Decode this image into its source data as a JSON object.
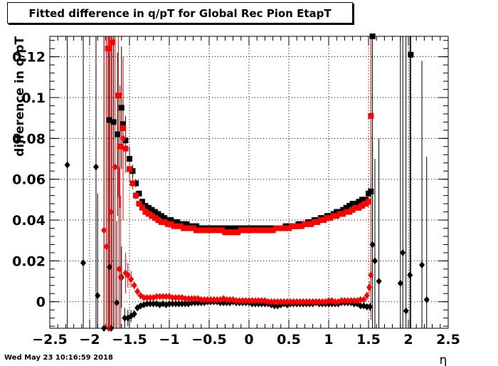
{
  "datestamp": "Wed May 23 10:16:59 2018",
  "chart_data": {
    "type": "scatter",
    "title": "Fitted difference in q/pT for Global Rec Pion EtapT",
    "xlabel": "η",
    "ylabel": "difference in q/pT",
    "xlim": [
      -2.5,
      2.5
    ],
    "ylim": [
      -0.013,
      0.13
    ],
    "grid": true,
    "xticks": [
      -2.5,
      -2,
      -1.5,
      -1,
      -0.5,
      0,
      0.5,
      1,
      1.5,
      2,
      2.5
    ],
    "xtick_labels": [
      "−2.5",
      "−2",
      "−1.5",
      "−1",
      "−0.5",
      "0",
      "0.5",
      "1",
      "1.5",
      "2",
      "2.5"
    ],
    "yticks": [
      0,
      0.02,
      0.04,
      0.06,
      0.08,
      0.1,
      0.12
    ],
    "ytick_labels": [
      "0",
      "0.02",
      "0.04",
      "0.06",
      "0.08",
      "0.1",
      "0.12"
    ],
    "colors": {
      "series1": "#000000",
      "series2": "#ff0000",
      "series3": "#000000",
      "series4": "#ff0000"
    },
    "series": [
      {
        "marker": "square",
        "color": "#000000",
        "x": [
          -1.75,
          -1.7,
          -1.65,
          -1.6,
          -1.58,
          -1.55,
          -1.5,
          -1.46,
          -1.42,
          -1.38,
          -1.34,
          -1.3,
          -1.26,
          -1.22,
          -1.18,
          -1.14,
          -1.1,
          -1.06,
          -1.02,
          -0.98,
          -0.94,
          -0.9,
          -0.86,
          -0.82,
          -0.78,
          -0.74,
          -0.7,
          -0.66,
          -0.62,
          -0.58,
          -0.54,
          -0.5,
          -0.46,
          -0.42,
          -0.38,
          -0.34,
          -0.3,
          -0.26,
          -0.22,
          -0.18,
          -0.14,
          -0.1,
          -0.06,
          -0.02,
          0.02,
          0.06,
          0.1,
          0.14,
          0.18,
          0.22,
          0.26,
          0.3,
          0.34,
          0.38,
          0.42,
          0.46,
          0.5,
          0.54,
          0.58,
          0.62,
          0.66,
          0.7,
          0.74,
          0.78,
          0.82,
          0.86,
          0.9,
          0.94,
          0.98,
          1.02,
          1.06,
          1.1,
          1.14,
          1.18,
          1.22,
          1.26,
          1.3,
          1.34,
          1.38,
          1.42,
          1.46,
          1.5,
          1.53,
          1.55,
          2.03
        ],
        "y": [
          0.089,
          0.088,
          0.082,
          0.095,
          0.087,
          0.079,
          0.07,
          0.064,
          0.058,
          0.053,
          0.049,
          0.047,
          0.046,
          0.045,
          0.044,
          0.043,
          0.042,
          0.041,
          0.04,
          0.04,
          0.039,
          0.039,
          0.038,
          0.038,
          0.038,
          0.037,
          0.037,
          0.037,
          0.036,
          0.036,
          0.036,
          0.036,
          0.036,
          0.036,
          0.036,
          0.036,
          0.036,
          0.036,
          0.036,
          0.036,
          0.036,
          0.036,
          0.036,
          0.036,
          0.036,
          0.036,
          0.036,
          0.036,
          0.036,
          0.036,
          0.036,
          0.036,
          0.036,
          0.036,
          0.036,
          0.037,
          0.037,
          0.037,
          0.037,
          0.038,
          0.038,
          0.038,
          0.039,
          0.039,
          0.04,
          0.04,
          0.041,
          0.041,
          0.042,
          0.042,
          0.043,
          0.044,
          0.044,
          0.045,
          0.046,
          0.047,
          0.048,
          0.048,
          0.049,
          0.05,
          0.05,
          0.053,
          0.054,
          0.13,
          0.121
        ],
        "err": [
          0.12,
          0.1,
          0.04,
          0.03,
          0.02,
          0.012,
          0.006,
          0.003,
          0.002,
          0.001,
          0.001,
          0.001,
          0.001,
          0.001,
          0.001,
          0.001,
          0.001,
          0.001,
          0.001,
          0.001,
          0.001,
          0.001,
          0.001,
          0.001,
          0.001,
          0.001,
          0.001,
          0.001,
          0.001,
          0.001,
          0.001,
          0.001,
          0.001,
          0.001,
          0.001,
          0.001,
          0.001,
          0.001,
          0.001,
          0.001,
          0.001,
          0.001,
          0.001,
          0.001,
          0.001,
          0.001,
          0.001,
          0.001,
          0.001,
          0.001,
          0.001,
          0.001,
          0.001,
          0.001,
          0.001,
          0.001,
          0.001,
          0.001,
          0.001,
          0.001,
          0.001,
          0.001,
          0.001,
          0.001,
          0.001,
          0.001,
          0.001,
          0.001,
          0.001,
          0.001,
          0.001,
          0.001,
          0.001,
          0.001,
          0.001,
          0.001,
          0.001,
          0.001,
          0.001,
          0.001,
          0.001,
          0.003,
          0.004,
          0.1,
          0.15
        ]
      },
      {
        "marker": "square",
        "color": "#ff0000",
        "x": [
          -1.77,
          -1.72,
          -1.64,
          -1.62,
          -1.58,
          -1.55,
          -1.5,
          -1.46,
          -1.42,
          -1.38,
          -1.34,
          -1.3,
          -1.26,
          -1.22,
          -1.18,
          -1.14,
          -1.1,
          -1.06,
          -1.02,
          -0.98,
          -0.94,
          -0.9,
          -0.86,
          -0.82,
          -0.78,
          -0.74,
          -0.7,
          -0.66,
          -0.62,
          -0.58,
          -0.54,
          -0.5,
          -0.46,
          -0.42,
          -0.38,
          -0.34,
          -0.3,
          -0.26,
          -0.22,
          -0.18,
          -0.14,
          -0.1,
          -0.06,
          -0.02,
          0.02,
          0.06,
          0.1,
          0.14,
          0.18,
          0.22,
          0.26,
          0.3,
          0.34,
          0.38,
          0.42,
          0.46,
          0.5,
          0.54,
          0.58,
          0.62,
          0.66,
          0.7,
          0.74,
          0.78,
          0.82,
          0.86,
          0.9,
          0.94,
          0.98,
          1.02,
          1.06,
          1.1,
          1.14,
          1.18,
          1.22,
          1.26,
          1.3,
          1.34,
          1.38,
          1.42,
          1.46,
          1.5,
          1.53
        ],
        "y": [
          0.124,
          0.127,
          0.101,
          0.076,
          0.085,
          0.075,
          0.065,
          0.058,
          0.052,
          0.048,
          0.046,
          0.044,
          0.043,
          0.042,
          0.041,
          0.04,
          0.039,
          0.039,
          0.038,
          0.038,
          0.037,
          0.037,
          0.037,
          0.036,
          0.036,
          0.036,
          0.036,
          0.035,
          0.035,
          0.035,
          0.035,
          0.035,
          0.035,
          0.035,
          0.035,
          0.035,
          0.034,
          0.034,
          0.034,
          0.034,
          0.034,
          0.035,
          0.035,
          0.035,
          0.035,
          0.035,
          0.035,
          0.035,
          0.035,
          0.035,
          0.035,
          0.035,
          0.036,
          0.036,
          0.036,
          0.036,
          0.036,
          0.037,
          0.037,
          0.037,
          0.037,
          0.038,
          0.038,
          0.038,
          0.039,
          0.039,
          0.04,
          0.04,
          0.041,
          0.041,
          0.042,
          0.042,
          0.043,
          0.043,
          0.044,
          0.044,
          0.045,
          0.046,
          0.046,
          0.047,
          0.048,
          0.049,
          0.091
        ],
        "err": [
          0.15,
          0.14,
          0.05,
          0.03,
          0.02,
          0.012,
          0.006,
          0.003,
          0.002,
          0.001,
          0.001,
          0.001,
          0.001,
          0.001,
          0.001,
          0.001,
          0.001,
          0.001,
          0.001,
          0.001,
          0.001,
          0.001,
          0.001,
          0.001,
          0.001,
          0.001,
          0.001,
          0.001,
          0.001,
          0.001,
          0.001,
          0.001,
          0.001,
          0.001,
          0.001,
          0.001,
          0.001,
          0.001,
          0.001,
          0.001,
          0.001,
          0.001,
          0.001,
          0.001,
          0.001,
          0.001,
          0.001,
          0.001,
          0.001,
          0.001,
          0.001,
          0.001,
          0.001,
          0.001,
          0.001,
          0.001,
          0.001,
          0.001,
          0.001,
          0.001,
          0.001,
          0.001,
          0.001,
          0.001,
          0.001,
          0.001,
          0.001,
          0.001,
          0.001,
          0.001,
          0.001,
          0.001,
          0.001,
          0.001,
          0.001,
          0.001,
          0.001,
          0.001,
          0.001,
          0.001,
          0.001,
          0.003,
          0.1
        ]
      },
      {
        "marker": "diamond",
        "color": "#000000",
        "x": [
          -2.28,
          -2.08,
          -1.92,
          -1.9,
          -1.82,
          -1.75,
          -1.73,
          -1.66,
          -1.6,
          -1.56,
          -1.52,
          -1.48,
          -1.44,
          -1.4,
          -1.36,
          -1.32,
          -1.28,
          -1.24,
          -1.2,
          -1.16,
          -1.12,
          -1.08,
          -1.04,
          -1.0,
          -0.96,
          -0.92,
          -0.88,
          -0.84,
          -0.8,
          -0.76,
          -0.72,
          -0.68,
          -0.64,
          -0.6,
          -0.56,
          -0.52,
          -0.48,
          -0.44,
          -0.4,
          -0.36,
          -0.32,
          -0.28,
          -0.24,
          -0.2,
          -0.16,
          -0.12,
          -0.08,
          -0.04,
          0.0,
          0.04,
          0.08,
          0.12,
          0.16,
          0.2,
          0.24,
          0.28,
          0.32,
          0.36,
          0.4,
          0.44,
          0.48,
          0.52,
          0.56,
          0.6,
          0.64,
          0.68,
          0.72,
          0.76,
          0.8,
          0.84,
          0.88,
          0.92,
          0.96,
          1.0,
          1.04,
          1.08,
          1.12,
          1.16,
          1.2,
          1.24,
          1.28,
          1.32,
          1.36,
          1.4,
          1.44,
          1.48,
          1.52,
          1.55,
          1.58,
          1.63,
          1.9,
          1.93,
          1.97,
          2.02,
          2.17,
          2.23
        ],
        "y": [
          0.067,
          0.019,
          0.066,
          0.003,
          -0.013,
          0.017,
          -0.013,
          -0.0005,
          0.012,
          -0.008,
          -0.008,
          -0.007,
          -0.006,
          -0.003,
          -0.002,
          -0.0015,
          -0.001,
          -0.001,
          -0.001,
          -0.001,
          -0.0015,
          -0.001,
          -0.0015,
          -0.001,
          -0.001,
          -0.001,
          -0.001,
          -0.001,
          -0.001,
          -0.001,
          -0.0005,
          -0.0005,
          -0.0005,
          -0.0005,
          -0.0005,
          0.0,
          0.0,
          0.0,
          0.0,
          -0.0005,
          -0.0005,
          -0.0005,
          -0.0005,
          0.0,
          -0.0005,
          -0.0005,
          -0.0005,
          -0.0005,
          -0.0005,
          -0.001,
          -0.001,
          -0.001,
          -0.001,
          -0.001,
          -0.001,
          -0.0015,
          -0.002,
          -0.002,
          -0.0015,
          -0.001,
          -0.0015,
          -0.001,
          -0.001,
          -0.001,
          -0.001,
          -0.001,
          -0.001,
          -0.001,
          -0.001,
          -0.0005,
          -0.001,
          -0.001,
          -0.001,
          -0.001,
          -0.001,
          -0.001,
          -0.001,
          -0.0005,
          -0.0005,
          -0.0005,
          -0.0005,
          -0.001,
          -0.001,
          -0.002,
          -0.002,
          -0.0025,
          -0.0025,
          0.028,
          0.02,
          0.01,
          0.009,
          0.024,
          -0.0045,
          0.013,
          0.018,
          0.001
        ],
        "err": [
          0.2,
          0.17,
          0.2,
          0.05,
          0.2,
          0.15,
          0.15,
          0.04,
          0.015,
          0.005,
          0.004,
          0.003,
          0.002,
          0.001,
          0.001,
          0.001,
          0.001,
          0.001,
          0.001,
          0.001,
          0.001,
          0.001,
          0.001,
          0.001,
          0.001,
          0.001,
          0.001,
          0.001,
          0.001,
          0.001,
          0.001,
          0.001,
          0.001,
          0.001,
          0.001,
          0.001,
          0.001,
          0.001,
          0.001,
          0.001,
          0.001,
          0.001,
          0.001,
          0.001,
          0.001,
          0.001,
          0.001,
          0.001,
          0.001,
          0.001,
          0.001,
          0.001,
          0.001,
          0.001,
          0.001,
          0.001,
          0.001,
          0.001,
          0.001,
          0.001,
          0.001,
          0.001,
          0.001,
          0.001,
          0.001,
          0.001,
          0.001,
          0.001,
          0.001,
          0.001,
          0.001,
          0.001,
          0.001,
          0.001,
          0.001,
          0.001,
          0.001,
          0.001,
          0.001,
          0.001,
          0.001,
          0.001,
          0.001,
          0.001,
          0.001,
          0.001,
          0.002,
          0.05,
          0.05,
          0.07,
          0.2,
          0.15,
          0.2,
          0.15,
          0.1,
          0.07
        ]
      },
      {
        "marker": "diamond",
        "color": "#ff0000",
        "x": [
          -1.82,
          -1.79,
          -1.76,
          -1.73,
          -1.68,
          -1.63,
          -1.61,
          -1.58,
          -1.55,
          -1.52,
          -1.48,
          -1.44,
          -1.4,
          -1.36,
          -1.32,
          -1.28,
          -1.24,
          -1.2,
          -1.16,
          -1.12,
          -1.08,
          -1.04,
          -1.0,
          -0.96,
          -0.92,
          -0.88,
          -0.84,
          -0.8,
          -0.76,
          -0.72,
          -0.68,
          -0.64,
          -0.6,
          -0.56,
          -0.52,
          -0.48,
          -0.44,
          -0.4,
          -0.36,
          -0.32,
          -0.28,
          -0.24,
          -0.2,
          -0.16,
          -0.12,
          -0.08,
          -0.04,
          0.0,
          0.04,
          0.08,
          0.12,
          0.16,
          0.2,
          0.24,
          0.28,
          0.32,
          0.36,
          0.4,
          0.44,
          0.48,
          0.52,
          0.56,
          0.6,
          0.64,
          0.68,
          0.72,
          0.76,
          0.8,
          0.84,
          0.88,
          0.92,
          0.96,
          1.0,
          1.04,
          1.08,
          1.12,
          1.16,
          1.2,
          1.24,
          1.28,
          1.32,
          1.36,
          1.4,
          1.44,
          1.48,
          1.51,
          1.53
        ],
        "y": [
          0.035,
          0.027,
          -0.013,
          0.044,
          0.066,
          0.016,
          0.012,
          0.08,
          0.014,
          0.013,
          0.011,
          0.008,
          0.005,
          0.003,
          0.002,
          0.002,
          0.002,
          0.002,
          0.0025,
          0.0025,
          0.0025,
          0.0025,
          0.0025,
          0.002,
          0.002,
          0.002,
          0.002,
          0.0015,
          0.0015,
          0.0015,
          0.0015,
          0.0015,
          0.001,
          0.001,
          0.001,
          0.001,
          0.001,
          0.001,
          0.001,
          0.0015,
          0.001,
          0.001,
          0.001,
          0.0005,
          0.0005,
          0.0005,
          0.0005,
          0.0005,
          0.0005,
          0.0005,
          0.0005,
          0.0005,
          0.0005,
          0.0,
          0.0,
          0.0,
          0.0,
          0.0,
          0.0,
          0.0,
          0.0,
          0.0,
          0.0,
          0.0,
          0.0,
          0.0,
          0.0,
          0.0,
          0.0,
          0.0,
          0.0,
          0.0,
          0.0005,
          0.0005,
          0.0,
          0.0,
          0.0005,
          0.0005,
          0.0005,
          0.0005,
          0.0005,
          0.0005,
          0.001,
          0.001,
          0.003,
          0.007,
          0.013
        ],
        "err": [
          0.2,
          0.2,
          0.2,
          0.2,
          0.2,
          0.05,
          0.04,
          0.04,
          0.01,
          0.006,
          0.004,
          0.002,
          0.002,
          0.001,
          0.001,
          0.001,
          0.001,
          0.001,
          0.001,
          0.001,
          0.001,
          0.001,
          0.001,
          0.001,
          0.001,
          0.001,
          0.001,
          0.001,
          0.001,
          0.001,
          0.001,
          0.001,
          0.001,
          0.001,
          0.001,
          0.001,
          0.001,
          0.001,
          0.001,
          0.001,
          0.001,
          0.001,
          0.001,
          0.001,
          0.001,
          0.001,
          0.001,
          0.001,
          0.001,
          0.001,
          0.001,
          0.001,
          0.001,
          0.001,
          0.001,
          0.001,
          0.001,
          0.001,
          0.001,
          0.001,
          0.001,
          0.001,
          0.001,
          0.001,
          0.001,
          0.001,
          0.001,
          0.001,
          0.001,
          0.001,
          0.001,
          0.001,
          0.001,
          0.001,
          0.001,
          0.001,
          0.001,
          0.001,
          0.001,
          0.001,
          0.001,
          0.001,
          0.001,
          0.001,
          0.002,
          0.003,
          0.005
        ]
      }
    ]
  }
}
